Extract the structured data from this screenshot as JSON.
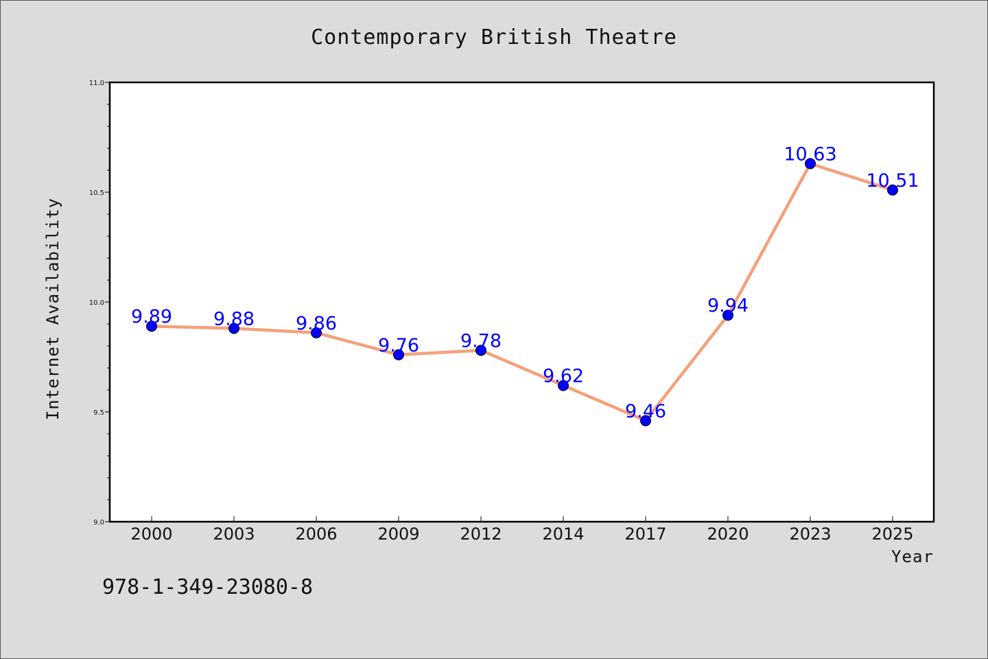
{
  "chart_data": {
    "type": "line",
    "title": "Contemporary British Theatre",
    "xlabel": "Year",
    "ylabel": "Internet Availability",
    "categories": [
      "2000",
      "2003",
      "2006",
      "2009",
      "2012",
      "2014",
      "2017",
      "2020",
      "2023",
      "2025"
    ],
    "series": [
      {
        "values": [
          9.89,
          9.88,
          9.86,
          9.76,
          9.78,
          9.62,
          9.46,
          9.94,
          10.63,
          10.51
        ],
        "line_color": "#f4a07a",
        "marker_color": "#0000ff"
      }
    ],
    "ylim": [
      9.0,
      11.0
    ],
    "yticks": [
      "9.0",
      "9.5",
      "10.0",
      "10.5",
      "11.0"
    ],
    "grid": false,
    "legend": "none",
    "label_color": "#0000ff"
  },
  "footer": {
    "isbn": "978-1-349-23080-8"
  }
}
